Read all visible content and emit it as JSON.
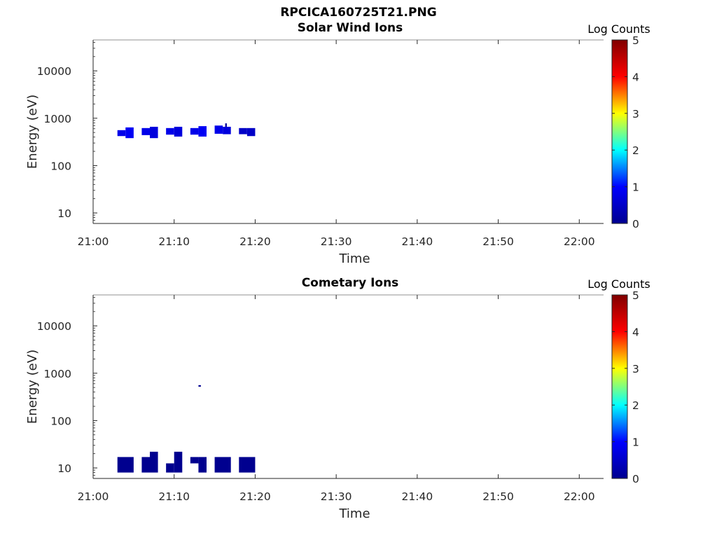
{
  "figure_title": "RPCICA160725T21.PNG",
  "colormap": {
    "name": "jet",
    "stops": [
      "#00008f",
      "#0000ff",
      "#00ffff",
      "#ffff00",
      "#ff0000",
      "#800000"
    ]
  },
  "chart_data": [
    {
      "type": "heatmap",
      "title": "Solar Wind Ions",
      "xlabel": "Time",
      "ylabel": "Energy (eV)",
      "x_scale": "time",
      "y_scale": "log",
      "xlim": [
        "21:00",
        "22:03"
      ],
      "ylim": [
        6,
        45000
      ],
      "x_ticks": [
        "21:00",
        "21:10",
        "21:20",
        "21:30",
        "21:40",
        "21:50",
        "22:00"
      ],
      "y_ticks": [
        "10",
        "100",
        "1000",
        "10000"
      ],
      "colorbar": {
        "label": "Log Counts",
        "range": [
          0,
          5
        ],
        "ticks": [
          "0",
          "1",
          "2",
          "3",
          "4",
          "5"
        ]
      },
      "cells": [
        {
          "t0": "21:03",
          "t1": "21:04",
          "e0": 420,
          "e1": 560,
          "v": 0.8
        },
        {
          "t0": "21:04",
          "t1": "21:05",
          "e0": 380,
          "e1": 640,
          "v": 0.9
        },
        {
          "t0": "21:06",
          "t1": "21:07",
          "e0": 440,
          "e1": 620,
          "v": 0.8
        },
        {
          "t0": "21:07",
          "t1": "21:08",
          "e0": 380,
          "e1": 660,
          "v": 0.7
        },
        {
          "t0": "21:09",
          "t1": "21:10",
          "e0": 450,
          "e1": 620,
          "v": 0.8
        },
        {
          "t0": "21:10",
          "t1": "21:11",
          "e0": 410,
          "e1": 660,
          "v": 0.7
        },
        {
          "t0": "21:12",
          "t1": "21:13",
          "e0": 450,
          "e1": 620,
          "v": 0.8
        },
        {
          "t0": "21:13",
          "t1": "21:14",
          "e0": 410,
          "e1": 680,
          "v": 0.9
        },
        {
          "t0": "21:15",
          "t1": "21:16",
          "e0": 470,
          "e1": 700,
          "v": 0.8
        },
        {
          "t0": "21:16",
          "t1": "21:17",
          "e0": 460,
          "e1": 660,
          "v": 0.7
        },
        {
          "t0": "21:16.3",
          "t1": "21:16.5",
          "e0": 660,
          "e1": 780,
          "v": 0.1
        },
        {
          "t0": "21:18",
          "t1": "21:19",
          "e0": 460,
          "e1": 620,
          "v": 0.5
        },
        {
          "t0": "21:19",
          "t1": "21:20",
          "e0": 420,
          "e1": 620,
          "v": 0.5
        }
      ]
    },
    {
      "type": "heatmap",
      "title": "Cometary Ions",
      "xlabel": "Time",
      "ylabel": "Energy (eV)",
      "x_scale": "time",
      "y_scale": "log",
      "xlim": [
        "21:00",
        "22:03"
      ],
      "ylim": [
        6,
        45000
      ],
      "x_ticks": [
        "21:00",
        "21:10",
        "21:20",
        "21:30",
        "21:40",
        "21:50",
        "22:00"
      ],
      "y_ticks": [
        "10",
        "100",
        "1000",
        "10000"
      ],
      "colorbar": {
        "label": "Log Counts",
        "range": [
          0,
          5
        ],
        "ticks": [
          "0",
          "1",
          "2",
          "3",
          "4",
          "5"
        ]
      },
      "cells": [
        {
          "t0": "21:03",
          "t1": "21:05",
          "e0": 8,
          "e1": 17,
          "v": 0
        },
        {
          "t0": "21:06",
          "t1": "21:07",
          "e0": 8,
          "e1": 17,
          "v": 0
        },
        {
          "t0": "21:07",
          "t1": "21:08",
          "e0": 8,
          "e1": 22,
          "v": 0
        },
        {
          "t0": "21:09",
          "t1": "21:10",
          "e0": 8,
          "e1": 12.5,
          "v": 0
        },
        {
          "t0": "21:10",
          "t1": "21:11",
          "e0": 8,
          "e1": 22,
          "v": 0
        },
        {
          "t0": "21:12",
          "t1": "21:13",
          "e0": 12.5,
          "e1": 17,
          "v": 0
        },
        {
          "t0": "21:13",
          "t1": "21:14",
          "e0": 8,
          "e1": 17,
          "v": 0
        },
        {
          "t0": "21:13",
          "t1": "21:13.3",
          "e0": 520,
          "e1": 560,
          "v": 0
        },
        {
          "t0": "21:15",
          "t1": "21:17",
          "e0": 8,
          "e1": 17,
          "v": 0
        },
        {
          "t0": "21:18",
          "t1": "21:20",
          "e0": 8,
          "e1": 17,
          "v": 0
        }
      ]
    }
  ]
}
